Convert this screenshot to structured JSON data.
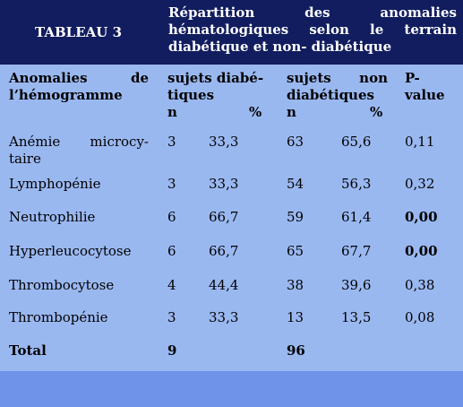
{
  "header": {
    "tab_label": "TABLEAU 3",
    "title": "Répartition des anomalies hématologiques selon le terrain diabétique et non- diabétique"
  },
  "columns": {
    "anomalies_line1": "Anomalies de",
    "anomalies_line2": "l’hémogramme",
    "diab_line1": "sujets diabé-",
    "diab_line2": "tiques",
    "nondiab_line1": "sujets non",
    "nondiab_line2": "diabétiques",
    "pvalue_line1": "P-",
    "pvalue_line2": "value",
    "n_label": "n",
    "pct_label": "%"
  },
  "rows": [
    {
      "name_line1": "Anémie microcy-",
      "name_line2": "taire",
      "d_n": "3",
      "d_pct": "33,3",
      "nd_n": "63",
      "nd_pct": "65,6",
      "p": "0,11",
      "p_bold": false
    },
    {
      "name_line1": "Lymphopénie",
      "d_n": "3",
      "d_pct": "33,3",
      "nd_n": "54",
      "nd_pct": "56,3",
      "p": "0,32",
      "p_bold": false
    },
    {
      "name_line1": "Neutrophilie",
      "d_n": "6",
      "d_pct": "66,7",
      "nd_n": "59",
      "nd_pct": "61,4",
      "p": "0,00",
      "p_bold": true
    },
    {
      "name_line1": "Hyperleucocytose",
      "d_n": "6",
      "d_pct": "66,7",
      "nd_n": "65",
      "nd_pct": "67,7",
      "p": "0,00",
      "p_bold": true
    },
    {
      "name_line1": "Thrombocytose",
      "d_n": "4",
      "d_pct": "44,4",
      "nd_n": "38",
      "nd_pct": "39,6",
      "p": "0,38",
      "p_bold": false
    },
    {
      "name_line1": "Thrombopénie",
      "d_n": "3",
      "d_pct": "33,3",
      "nd_n": "13",
      "nd_pct": "13,5",
      "p": "0,08",
      "p_bold": false
    }
  ],
  "total": {
    "label": "Total",
    "d_n": "9",
    "nd_n": "96"
  },
  "colors": {
    "header_bg": "#111d5e",
    "body_bg": "#9ab8f0",
    "footer_bg": "#6e93e8",
    "header_text": "#ffffff"
  }
}
